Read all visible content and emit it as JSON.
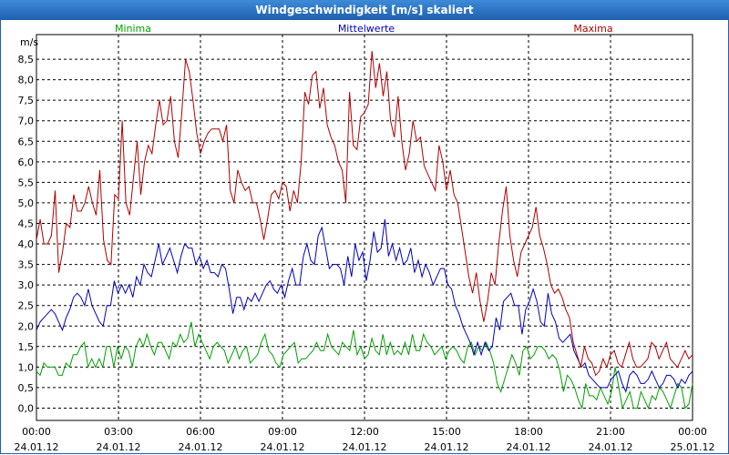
{
  "window": {
    "title": "Windgeschwindigkeit [m/s] skaliert"
  },
  "chart_data": {
    "type": "line",
    "title": "Windgeschwindigkeit [m/s] skaliert",
    "ylabel": "m/s",
    "ylim": [
      -0.3,
      9.1
    ],
    "yticks": [
      "0,0",
      "0,5",
      "1,0",
      "1,5",
      "2,0",
      "2,5",
      "3,0",
      "3,5",
      "4,0",
      "4,5",
      "5,0",
      "5,5",
      "6,0",
      "6,5",
      "7,0",
      "7,5",
      "8,0",
      "8,5"
    ],
    "yticks_values": [
      0,
      0.5,
      1,
      1.5,
      2,
      2.5,
      3,
      3.5,
      4,
      4.5,
      5,
      5.5,
      6,
      6.5,
      7,
      7.5,
      8,
      8.5
    ],
    "xticks": [
      {
        "time": "00:00",
        "date": "24.01.12"
      },
      {
        "time": "03:00",
        "date": "24.01.12"
      },
      {
        "time": "06:00",
        "date": "24.01.12"
      },
      {
        "time": "09:00",
        "date": "24.01.12"
      },
      {
        "time": "12:00",
        "date": "24.01.12"
      },
      {
        "time": "15:00",
        "date": "24.01.12"
      },
      {
        "time": "18:00",
        "date": "24.01.12"
      },
      {
        "time": "21:00",
        "date": "24.01.12"
      },
      {
        "time": "00:00",
        "date": "25.01.12"
      }
    ],
    "grid": true,
    "legend_placement": "top",
    "series": [
      {
        "name": "Minima",
        "color": "#00a000",
        "values": [
          0.9,
          0.8,
          1.1,
          1.0,
          1.0,
          1.0,
          0.8,
          0.8,
          1.1,
          1.0,
          1.3,
          1.3,
          1.5,
          1.6,
          1.0,
          1.2,
          1.0,
          1.2,
          1.0,
          1.5,
          1.5,
          1.0,
          1.5,
          1.2,
          1.5,
          1.4,
          1.0,
          1.5,
          1.7,
          1.5,
          1.8,
          1.5,
          1.3,
          1.6,
          1.6,
          1.4,
          1.2,
          1.6,
          1.5,
          1.8,
          1.6,
          1.7,
          2.1,
          1.5,
          1.8,
          1.6,
          1.4,
          1.2,
          1.5,
          1.6,
          1.5,
          1.4,
          1.1,
          1.3,
          1.5,
          1.2,
          1.4,
          1.5,
          1.1,
          1.2,
          1.3,
          1.6,
          1.8,
          1.4,
          1.3,
          1.1,
          1.0,
          1.3,
          1.4,
          1.5,
          1.6,
          1.1,
          1.2,
          1.2,
          1.3,
          1.4,
          1.6,
          1.4,
          1.4,
          1.8,
          1.5,
          1.4,
          1.3,
          1.6,
          1.5,
          1.4,
          1.9,
          1.3,
          1.5,
          1.2,
          1.3,
          1.7,
          1.4,
          1.3,
          1.8,
          1.3,
          1.6,
          1.3,
          1.4,
          1.3,
          1.6,
          1.3,
          1.8,
          1.4,
          1.4,
          1.8,
          1.6,
          1.5,
          1.3,
          1.4,
          1.5,
          1.2,
          1.4,
          1.5,
          1.4,
          1.2,
          1.1,
          1.5,
          1.6,
          1.3,
          1.5,
          1.4,
          1.6,
          1.4,
          1.1,
          0.6,
          0.4,
          0.7,
          1.0,
          1.3,
          1.1,
          0.8,
          1.4,
          1.5,
          1.2,
          1.3,
          1.5,
          1.5,
          1.4,
          1.2,
          1.3,
          1.2,
          0.9,
          0.4,
          0.8,
          0.7,
          0.5,
          0.2,
          0.0,
          0.6,
          0.3,
          0.3,
          0.2,
          0.5,
          0.3,
          0.1,
          0.4,
          1.0,
          0.5,
          0.0,
          0.2,
          0.4,
          0.0,
          0.0,
          0.4,
          0.2,
          0.0,
          0.3,
          0.2,
          0.5,
          0.4,
          0.2,
          0.0,
          0.3,
          0.6,
          0.5,
          0.0,
          0.1,
          0.6
        ]
      },
      {
        "name": "Mittelwerte",
        "color": "#0000c0",
        "values": [
          1.9,
          2.1,
          2.2,
          2.3,
          2.4,
          2.3,
          2.1,
          1.9,
          2.2,
          2.4,
          2.7,
          2.8,
          2.7,
          2.5,
          2.9,
          2.5,
          2.3,
          2.1,
          2.0,
          2.5,
          2.5,
          3.1,
          2.8,
          3.0,
          2.8,
          3.0,
          2.7,
          3.2,
          3.0,
          3.5,
          3.3,
          3.2,
          3.6,
          4.0,
          3.5,
          3.7,
          3.9,
          3.6,
          3.3,
          3.7,
          4.0,
          3.9,
          3.9,
          3.5,
          3.7,
          3.4,
          3.6,
          3.3,
          3.3,
          3.2,
          3.5,
          3.4,
          2.9,
          2.3,
          2.7,
          2.7,
          2.4,
          2.7,
          2.6,
          2.8,
          2.6,
          2.8,
          3.0,
          3.1,
          2.9,
          2.8,
          3.0,
          2.7,
          3.1,
          3.4,
          3.0,
          3.0,
          3.7,
          4.0,
          3.6,
          3.5,
          4.2,
          4.4,
          3.9,
          3.4,
          3.5,
          3.5,
          3.4,
          3.0,
          3.7,
          3.2,
          4.0,
          3.6,
          3.8,
          3.1,
          3.6,
          4.3,
          3.8,
          3.9,
          4.6,
          3.7,
          4.0,
          3.6,
          3.9,
          3.5,
          3.6,
          3.9,
          3.3,
          3.6,
          3.2,
          3.5,
          3.3,
          3.0,
          3.2,
          3.4,
          3.4,
          3.0,
          2.9,
          2.5,
          2.3,
          2.0,
          1.8,
          1.6,
          1.3,
          1.6,
          1.3,
          1.6,
          1.4,
          1.5,
          2.2,
          1.9,
          2.6,
          2.7,
          2.8,
          2.5,
          2.5,
          1.8,
          2.4,
          2.6,
          2.9,
          2.6,
          2.1,
          2.0,
          2.8,
          2.3,
          2.1,
          1.7,
          1.6,
          1.7,
          1.8,
          1.4,
          1.2,
          1.0,
          1.1,
          0.8,
          0.7,
          0.6,
          0.5,
          0.5,
          0.5,
          0.7,
          0.8,
          0.9,
          0.6,
          0.4,
          0.8,
          0.9,
          0.8,
          0.6,
          0.6,
          0.7,
          0.9,
          0.7,
          0.5,
          0.6,
          0.8,
          0.8,
          0.7,
          0.5,
          0.7,
          0.6,
          0.8,
          0.9
        ]
      },
      {
        "name": "Maxima",
        "color": "#b00000",
        "values": [
          4.1,
          4.6,
          4.0,
          4.0,
          4.2,
          5.3,
          3.3,
          3.8,
          4.5,
          4.4,
          5.2,
          4.8,
          4.8,
          5.0,
          5.4,
          5.0,
          4.7,
          5.8,
          4.1,
          3.6,
          3.5,
          5.2,
          5.1,
          7.0,
          5.0,
          4.7,
          5.6,
          6.5,
          5.2,
          6.0,
          6.4,
          6.2,
          6.9,
          7.5,
          6.9,
          7.0,
          7.6,
          6.5,
          6.1,
          7.2,
          8.5,
          8.2,
          7.5,
          6.7,
          6.2,
          6.5,
          6.7,
          6.8,
          6.8,
          6.8,
          6.5,
          6.9,
          5.3,
          5.0,
          5.8,
          5.5,
          5.3,
          5.4,
          5.0,
          5.0,
          4.6,
          4.1,
          4.6,
          5.2,
          5.3,
          5.1,
          5.5,
          5.4,
          4.8,
          5.3,
          5.0,
          6.0,
          7.7,
          7.4,
          8.1,
          8.2,
          7.3,
          7.8,
          6.9,
          6.6,
          6.4,
          6.0,
          5.8,
          5.0,
          7.7,
          6.4,
          6.3,
          7.1,
          7.2,
          7.4,
          8.7,
          7.8,
          8.4,
          7.6,
          8.2,
          7.0,
          6.6,
          7.6,
          6.5,
          5.8,
          6.2,
          7.0,
          6.5,
          6.6,
          5.9,
          5.7,
          5.5,
          5.3,
          6.4,
          6.0,
          5.3,
          5.8,
          5.2,
          5.0,
          4.4,
          3.8,
          3.2,
          2.8,
          3.3,
          2.6,
          2.1,
          2.6,
          3.3,
          3.0,
          4.0,
          4.8,
          5.4,
          4.2,
          3.6,
          3.2,
          3.8,
          4.0,
          4.2,
          4.4,
          4.9,
          4.2,
          3.9,
          3.5,
          3.0,
          2.8,
          2.9,
          2.7,
          2.4,
          2.2,
          1.6,
          1.3,
          1.0,
          1.5,
          1.2,
          1.1,
          0.8,
          0.9,
          1.2,
          1.0,
          1.3,
          1.4,
          1.1,
          1.0,
          1.3,
          1.6,
          1.2,
          1.0,
          1.0,
          1.1,
          1.2,
          1.6,
          1.5,
          1.2,
          1.4,
          1.6,
          1.2,
          1.1,
          1.0,
          1.2,
          1.4,
          1.2,
          1.3
        ]
      }
    ]
  }
}
